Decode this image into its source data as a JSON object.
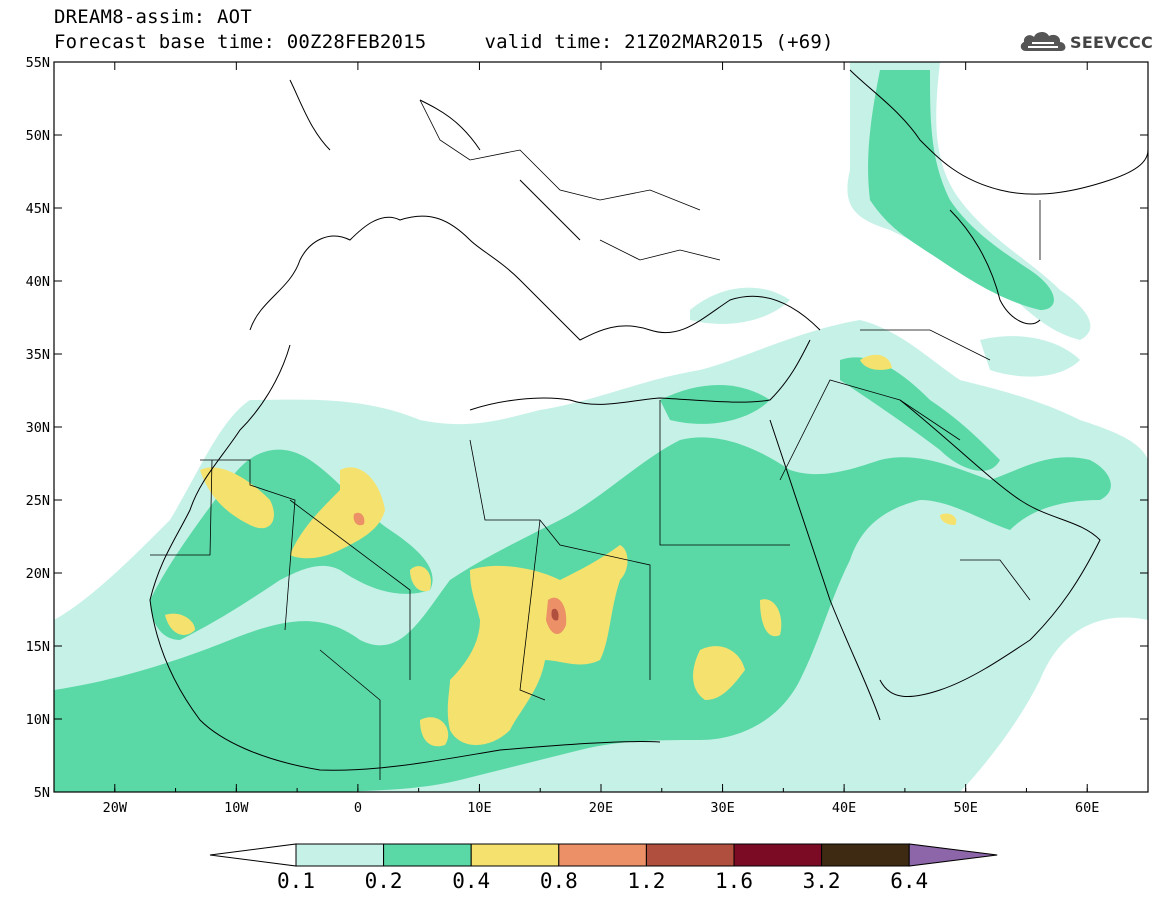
{
  "header": {
    "title": "DREAM8-assim: AOT",
    "base_time": "Forecast base time: 00Z28FEB2015",
    "valid_time": "valid time: 21Z02MAR2015 (+69)",
    "logo_text": "SEEVCCC",
    "logo_icon": "cloud-logo-icon"
  },
  "axes": {
    "longitude_labels": [
      "20W",
      "10W",
      "0",
      "10E",
      "20E",
      "30E",
      "40E",
      "50E",
      "60E"
    ],
    "latitude_labels": [
      "55N",
      "50N",
      "45N",
      "40N",
      "35N",
      "30N",
      "25N",
      "20N",
      "15N",
      "10N",
      "5N"
    ],
    "lon_range": [
      -25,
      65
    ],
    "lat_range": [
      5,
      55
    ]
  },
  "colorbar": {
    "labels": [
      "0.1",
      "0.2",
      "0.4",
      "0.8",
      "1.2",
      "1.6",
      "3.2",
      "6.4"
    ],
    "colors": [
      "#ffffff",
      "#c6f1e7",
      "#5ad9a7",
      "#f5e26e",
      "#eb9067",
      "#b04f3e",
      "#7b0a24",
      "#3e2a12",
      "#8c66a8"
    ]
  }
}
